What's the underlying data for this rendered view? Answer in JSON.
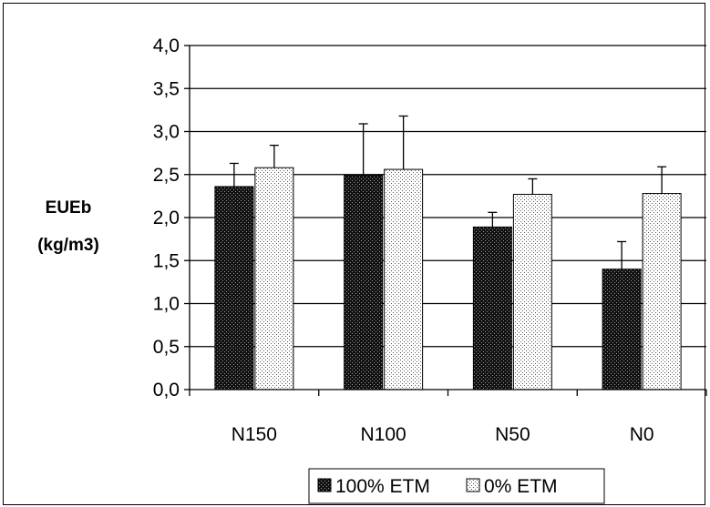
{
  "chart_data": {
    "type": "bar",
    "title": "",
    "xlabel": "",
    "ylabel_lines": [
      "EUEb",
      "(kg/m3)"
    ],
    "categories": [
      "N150",
      "N100",
      "N50",
      "N0"
    ],
    "ylim": [
      0,
      4
    ],
    "yticks": [
      "0,0",
      "0,5",
      "1,0",
      "1,5",
      "2,0",
      "2,5",
      "3,0",
      "3,5",
      "4,0"
    ],
    "grid": true,
    "legend_position": "bottom",
    "series": [
      {
        "name": "100% ETM",
        "values": [
          2.36,
          2.49,
          1.89,
          1.4
        ],
        "error": [
          0.27,
          0.6,
          0.17,
          0.32
        ],
        "pattern": "dark-dotted",
        "color": "#1a1a1a"
      },
      {
        "name": "0% ETM",
        "values": [
          2.58,
          2.56,
          2.27,
          2.28
        ],
        "error": [
          0.26,
          0.62,
          0.18,
          0.31
        ],
        "pattern": "light-dotted",
        "color": "#f2f2f2"
      }
    ]
  }
}
